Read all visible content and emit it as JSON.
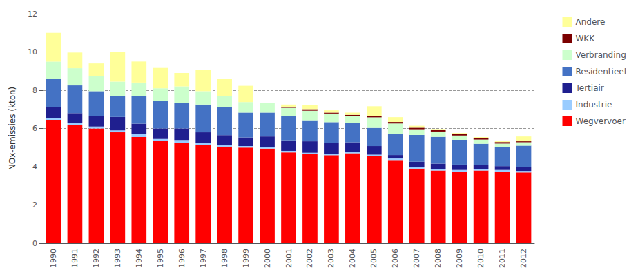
{
  "chart_data": {
    "type": "bar",
    "stacked": true,
    "categories": [
      "1990",
      "1991",
      "1992",
      "1993",
      "1994",
      "1995",
      "1996",
      "1997",
      "1998",
      "1999",
      "2000",
      "2001",
      "2002",
      "2003",
      "2004",
      "2005",
      "2006",
      "2007",
      "2008",
      "2009",
      "2010",
      "2011",
      "2012"
    ],
    "series": [
      {
        "name": "Wegvervoer",
        "color": "#ff0000",
        "values": [
          6.45,
          6.2,
          6.0,
          5.8,
          5.55,
          5.35,
          5.25,
          5.15,
          5.05,
          5.0,
          4.95,
          4.75,
          4.65,
          4.6,
          4.7,
          4.55,
          4.35,
          3.9,
          3.8,
          3.75,
          3.8,
          3.75,
          3.7
        ]
      },
      {
        "name": "Industrie",
        "color": "#99ccff",
        "values": [
          0.1,
          0.1,
          0.1,
          0.1,
          0.15,
          0.1,
          0.15,
          0.1,
          0.1,
          0.08,
          0.08,
          0.08,
          0.08,
          0.08,
          0.08,
          0.08,
          0.08,
          0.08,
          0.08,
          0.08,
          0.08,
          0.08,
          0.08
        ]
      },
      {
        "name": "Tertiair",
        "color": "#1f1f8f",
        "values": [
          0.55,
          0.5,
          0.55,
          0.7,
          0.55,
          0.55,
          0.6,
          0.55,
          0.5,
          0.45,
          0.55,
          0.55,
          0.6,
          0.55,
          0.5,
          0.45,
          0.18,
          0.28,
          0.28,
          0.28,
          0.22,
          0.2,
          0.22
        ]
      },
      {
        "name": "Residentieel",
        "color": "#4472c4",
        "values": [
          1.5,
          1.45,
          1.3,
          1.1,
          1.45,
          1.45,
          1.35,
          1.45,
          1.45,
          1.3,
          1.25,
          1.25,
          1.1,
          1.1,
          1.0,
          0.95,
          1.1,
          1.4,
          1.4,
          1.3,
          1.1,
          1.0,
          1.1
        ]
      },
      {
        "name": "Verbranding",
        "color": "#ccffcc",
        "values": [
          0.9,
          0.9,
          0.8,
          0.75,
          0.7,
          0.65,
          0.85,
          0.7,
          0.6,
          0.55,
          0.5,
          0.45,
          0.5,
          0.45,
          0.38,
          0.55,
          0.55,
          0.3,
          0.28,
          0.22,
          0.22,
          0.18,
          0.18
        ]
      },
      {
        "name": "WKK",
        "color": "#7b0000",
        "values": [
          0.0,
          0.0,
          0.0,
          0.0,
          0.0,
          0.0,
          0.0,
          0.0,
          0.0,
          0.0,
          0.0,
          0.05,
          0.08,
          0.05,
          0.05,
          0.08,
          0.08,
          0.08,
          0.08,
          0.08,
          0.08,
          0.08,
          0.05
        ]
      },
      {
        "name": "Andere",
        "color": "#ffff99",
        "values": [
          1.5,
          0.82,
          0.65,
          1.55,
          1.1,
          1.1,
          0.7,
          1.1,
          0.9,
          0.85,
          0.0,
          0.12,
          0.22,
          0.12,
          0.12,
          0.5,
          0.25,
          0.1,
          0.05,
          0.05,
          0.05,
          0.05,
          0.25
        ]
      }
    ],
    "ylabel": "NOx-emissies (kton)",
    "ylim": [
      0,
      12
    ],
    "yticks": [
      0,
      2,
      4,
      6,
      8,
      10,
      12
    ],
    "grid": true,
    "legend": "right"
  }
}
